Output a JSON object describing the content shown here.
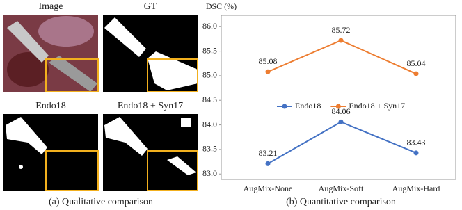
{
  "panel_a": {
    "labels": [
      "Image",
      "GT",
      "Endo18",
      "Endo18 + Syn17"
    ],
    "caption": "(a) Qualitative comparison"
  },
  "chart_data": {
    "type": "line",
    "ylabel": "DSC (%)",
    "caption": "(b) Quantitative comparison",
    "categories": [
      "AugMix-None",
      "AugMix-Soft",
      "AugMix-Hard"
    ],
    "series": [
      {
        "name": "Endo18",
        "color": "#4472c4",
        "values": [
          83.21,
          84.06,
          83.43
        ]
      },
      {
        "name": "Endo18 + Syn17",
        "color": "#ed7d31",
        "values": [
          85.08,
          85.72,
          85.04
        ]
      }
    ],
    "ylim": [
      82.89,
      86.23
    ],
    "yticks": [
      {
        "value": 83,
        "label": "83.0"
      },
      83.5,
      {
        "value": 84,
        "label": "84.0"
      },
      84.5,
      {
        "value": 85,
        "label": "85.0"
      },
      85.5,
      {
        "value": 86,
        "label": "86.0"
      }
    ],
    "legend": "center"
  }
}
